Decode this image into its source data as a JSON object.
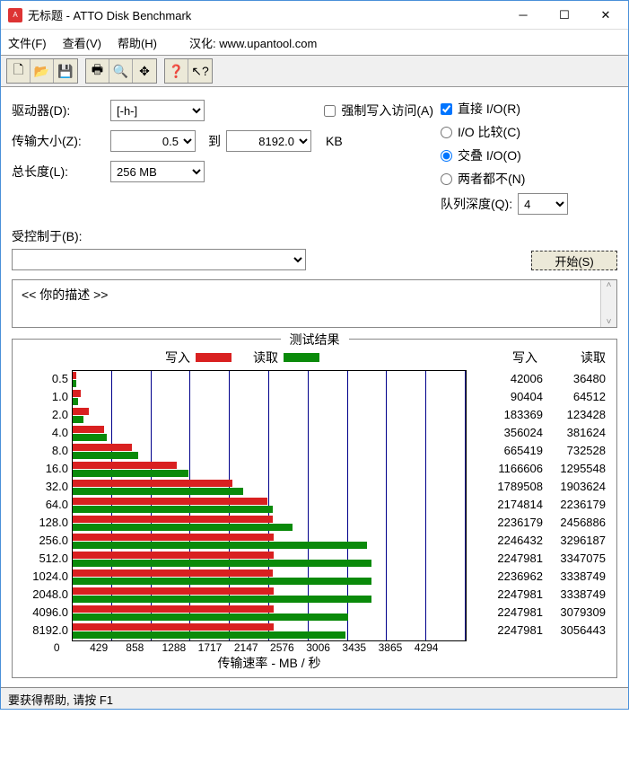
{
  "window": {
    "title": "无标题 - ATTO Disk Benchmark"
  },
  "menu": {
    "file": "文件(F)",
    "view": "查看(V)",
    "help": "帮助(H)",
    "localize": "汉化: www.upantool.com"
  },
  "form": {
    "drive_label": "驱动器(D):",
    "drive_value": "[-h-]",
    "xfer_label": "传输大小(Z):",
    "xfer_from": "0.5",
    "xfer_to_label": "到",
    "xfer_to": "8192.0",
    "xfer_unit": "KB",
    "totallen_label": "总长度(L):",
    "totallen_value": "256 MB",
    "force_write": "强制写入访问(A)",
    "direct_io": "直接 I/O(R)",
    "io_compare": "I/O 比较(C)",
    "overlap_io": "交叠 I/O(O)",
    "neither": "两者都不(N)",
    "queue_label": "队列深度(Q):",
    "queue_value": "4",
    "controlled_label": "受控制于(B):",
    "start_btn": "开始(S)",
    "desc": "<<  你的描述   >>"
  },
  "results": {
    "title": "测试结果",
    "legend_write": "写入",
    "legend_read": "读取",
    "col_write": "写入",
    "col_read": "读取",
    "write_color": "#d92020",
    "read_color": "#0a8a0a",
    "x_label": "传输速率 - MB / 秒",
    "x_max": 4294,
    "x_ticks": [
      0,
      429,
      858,
      1288,
      1717,
      2147,
      2576,
      3006,
      3435,
      3865,
      4294
    ],
    "rows": [
      {
        "size": "0.5",
        "write": 42006,
        "read": 36480,
        "w_mb": 41,
        "r_mb": 36
      },
      {
        "size": "1.0",
        "write": 90404,
        "read": 64512,
        "w_mb": 88,
        "r_mb": 63
      },
      {
        "size": "2.0",
        "write": 183369,
        "read": 123428,
        "w_mb": 179,
        "r_mb": 121
      },
      {
        "size": "4.0",
        "write": 356024,
        "read": 381624,
        "w_mb": 348,
        "r_mb": 373
      },
      {
        "size": "8.0",
        "write": 665419,
        "read": 732528,
        "w_mb": 650,
        "r_mb": 715
      },
      {
        "size": "16.0",
        "write": 1166606,
        "read": 1295548,
        "w_mb": 1139,
        "r_mb": 1265
      },
      {
        "size": "32.0",
        "write": 1789508,
        "read": 1903624,
        "w_mb": 1748,
        "r_mb": 1859
      },
      {
        "size": "64.0",
        "write": 2174814,
        "read": 2236179,
        "w_mb": 2124,
        "r_mb": 2184
      },
      {
        "size": "128.0",
        "write": 2236179,
        "read": 2456886,
        "w_mb": 2184,
        "r_mb": 2399
      },
      {
        "size": "256.0",
        "write": 2246432,
        "read": 3296187,
        "w_mb": 2194,
        "r_mb": 3219
      },
      {
        "size": "512.0",
        "write": 2247981,
        "read": 3347075,
        "w_mb": 2195,
        "r_mb": 3269
      },
      {
        "size": "1024.0",
        "write": 2236962,
        "read": 3338749,
        "w_mb": 2185,
        "r_mb": 3261
      },
      {
        "size": "2048.0",
        "write": 2247981,
        "read": 3338749,
        "w_mb": 2195,
        "r_mb": 3261
      },
      {
        "size": "4096.0",
        "write": 2247981,
        "read": 3079309,
        "w_mb": 2195,
        "r_mb": 3008
      },
      {
        "size": "8192.0",
        "write": 2247981,
        "read": 3056443,
        "w_mb": 2195,
        "r_mb": 2985
      }
    ]
  },
  "status": "要获得帮助, 请按 F1"
}
